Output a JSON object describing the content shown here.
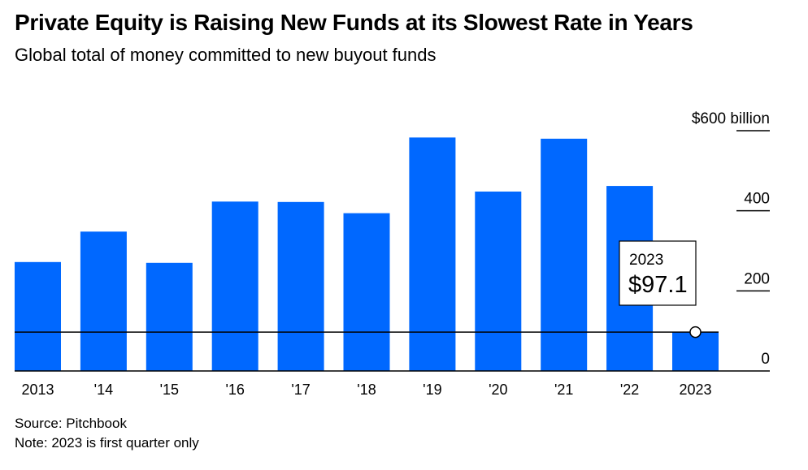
{
  "header": {
    "title": "Private Equity is Raising New Funds at its Slowest Rate in Years",
    "subtitle": "Global total of money committed to new buyout funds"
  },
  "footer": {
    "source": "Source: Pitchbook",
    "note": "Note: 2023 is first quarter only"
  },
  "chart_data": {
    "type": "bar",
    "categories": [
      "2013",
      "'14",
      "'15",
      "'16",
      "'17",
      "'18",
      "'19",
      "'20",
      "'21",
      "'22",
      "2023"
    ],
    "values": [
      272,
      348,
      270,
      423,
      422,
      394,
      583,
      448,
      580,
      462,
      97.1
    ],
    "ylim": [
      0,
      600
    ],
    "yticks": [
      {
        "value": 0,
        "label": "0"
      },
      {
        "value": 200,
        "label": "200"
      },
      {
        "value": 400,
        "label": "400"
      },
      {
        "value": 600,
        "label": "$600 billion"
      }
    ],
    "reference_line": {
      "value": 97.1
    },
    "callout": {
      "category": "2023",
      "year_label": "2023",
      "value_label": "$97.1"
    },
    "bar_color": "#0068ff",
    "grid": false,
    "legend": "none"
  }
}
